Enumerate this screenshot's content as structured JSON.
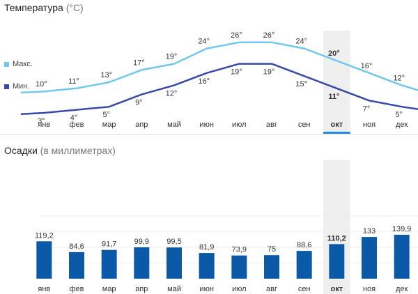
{
  "temperature": {
    "title": "Температура",
    "unit": "(°C)",
    "legend_max": "Макс.",
    "legend_min": "Мин.",
    "color_max": "#6fc8f0",
    "color_min": "#3949ab"
  },
  "precipitation": {
    "title": "Осадки",
    "unit": "(в миллиметрах)",
    "bar_color": "#0b5aa8"
  },
  "selected_month": "окт",
  "selected_color": "#1e88e5",
  "chart_data": [
    {
      "type": "line",
      "categories": [
        "янв",
        "фев",
        "мар",
        "апр",
        "май",
        "июн",
        "июл",
        "авг",
        "сен",
        "окт",
        "ноя",
        "дек"
      ],
      "series": [
        {
          "name": "Макс.",
          "values": [
            10,
            11,
            13,
            17,
            19,
            24,
            26,
            26,
            24,
            20,
            16,
            12
          ],
          "labels": [
            "10°",
            "11°",
            "13°",
            "17°",
            "19°",
            "24°",
            "26°",
            "26°",
            "24°",
            "20°",
            "16°",
            "12°"
          ]
        },
        {
          "name": "Мин.",
          "values": [
            3,
            4,
            5,
            9,
            12,
            16,
            19,
            19,
            15,
            11,
            7,
            5
          ],
          "labels": [
            "3°",
            "4°",
            "5°",
            "9°",
            "12°",
            "16°",
            "19°",
            "19°",
            "15°",
            "11°",
            "7°",
            "5°"
          ]
        }
      ],
      "title": "Температура",
      "ylabel": "°C",
      "highlight": "окт"
    },
    {
      "type": "bar",
      "categories": [
        "янв",
        "фев",
        "мар",
        "апр",
        "май",
        "июн",
        "июл",
        "авг",
        "сен",
        "окт",
        "ноя",
        "дек"
      ],
      "values": [
        119.2,
        84.6,
        91.7,
        99.9,
        99.5,
        81.9,
        73.9,
        75,
        88.6,
        110.2,
        133,
        139.9
      ],
      "labels": [
        "119,2",
        "84,6",
        "91,7",
        "99,9",
        "99,5",
        "81,9",
        "73,9",
        "75",
        "88,6",
        "110,2",
        "133",
        "139,9"
      ],
      "title": "Осадки",
      "ylabel": "мм",
      "ylim": [
        0,
        200
      ],
      "grid": true,
      "highlight": "окт"
    }
  ]
}
